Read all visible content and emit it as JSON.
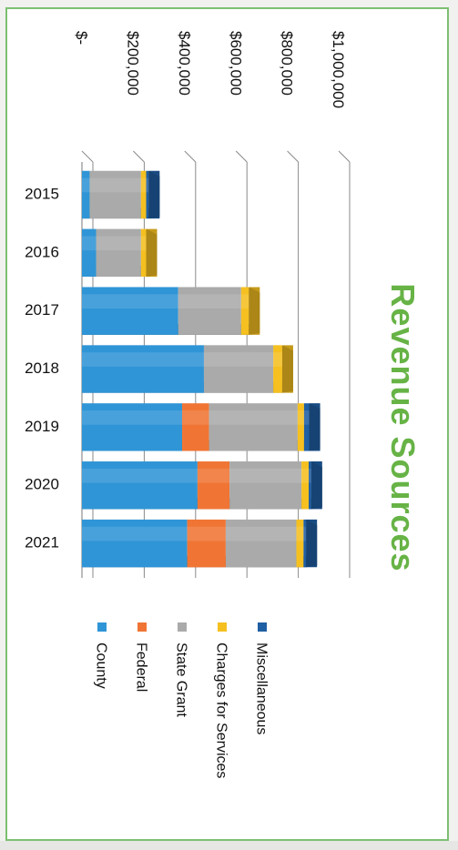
{
  "chart_data": {
    "type": "bar",
    "orientation": "horizontal",
    "stacked": true,
    "three_d": true,
    "rotation": "90deg clockwise (page rotated)",
    "title": "Revenue Sources",
    "categories": [
      "2015",
      "2016",
      "2017",
      "2018",
      "2019",
      "2020",
      "2021"
    ],
    "series": [
      {
        "name": "County",
        "values": [
          30000,
          55000,
          375000,
          475000,
          390000,
          450000,
          410000
        ]
      },
      {
        "name": "Federal",
        "values": [
          0,
          0,
          0,
          0,
          105000,
          125000,
          150000
        ]
      },
      {
        "name": "State Grant",
        "values": [
          200000,
          175000,
          245000,
          270000,
          345000,
          280000,
          275000
        ]
      },
      {
        "name": "Charges for Services",
        "values": [
          20000,
          20000,
          30000,
          35000,
          25000,
          28000,
          28000
        ]
      },
      {
        "name": "Miscellaneous",
        "values": [
          10000,
          0,
          0,
          0,
          20000,
          10000,
          10000
        ]
      }
    ],
    "value_axis": {
      "min": 0,
      "max": 1000000,
      "step": 200000,
      "tick_labels": [
        "$-",
        "$200,000",
        "$400,000",
        "$600,000",
        "$800,000",
        "$1,000,000"
      ]
    },
    "grid": true,
    "legend_position": "bottom",
    "colors": {
      "County": "#2f95d6",
      "Federal": "#f07534",
      "State Grant": "#a9aaa9",
      "Charges for Services": "#f5c020",
      "Miscellaneous": "#1f5fa4",
      "title": "#67b346",
      "frame": "#7cc070"
    }
  }
}
